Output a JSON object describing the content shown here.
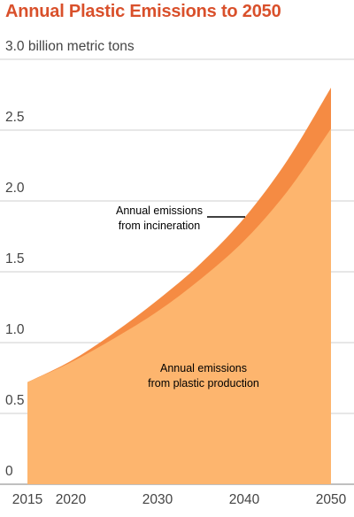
{
  "chart_data": {
    "type": "area",
    "title": "Annual Plastic Emissions to 2050",
    "ylabel": "billion metric tons",
    "xlim": [
      2015,
      2050
    ],
    "ylim": [
      0,
      3.0
    ],
    "x_ticks": [
      2015,
      2020,
      2030,
      2040,
      2050
    ],
    "y_ticks": [
      0,
      0.5,
      1.0,
      1.5,
      2.0,
      2.5,
      3.0
    ],
    "y_tick_labels": [
      "0",
      "0.5",
      "1.0",
      "1.5",
      "2.0",
      "2.5",
      "3.0"
    ],
    "top_tick_suffix": " billion metric tons",
    "grid": true,
    "stacked": true,
    "x": [
      2015,
      2020,
      2025,
      2030,
      2035,
      2040,
      2045,
      2050
    ],
    "series": [
      {
        "name": "Annual emissions from plastic production",
        "values": [
          0.72,
          0.86,
          1.03,
          1.22,
          1.45,
          1.72,
          2.07,
          2.51
        ],
        "color": "#fdb56e"
      },
      {
        "name": "Annual emissions from incineration",
        "values": [
          0.0,
          0.01,
          0.04,
          0.08,
          0.11,
          0.16,
          0.22,
          0.29
        ],
        "color": "#f58b43"
      }
    ],
    "annotations": [
      {
        "lines": [
          "Annual emissions",
          "from incineration"
        ]
      },
      {
        "lines": [
          "Annual emissions",
          "from plastic production"
        ]
      }
    ]
  }
}
